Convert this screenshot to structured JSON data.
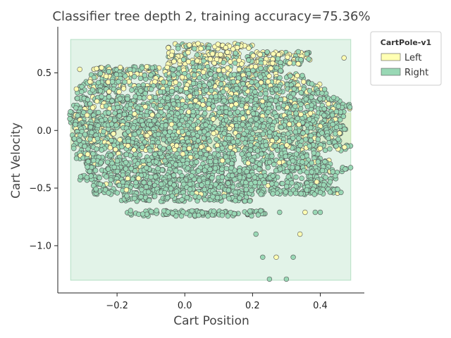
{
  "chart_data": {
    "type": "scatter",
    "title": "Classifier tree depth 2, training accuracy=75.36%",
    "xlabel": "Cart Position",
    "ylabel": "Cart Velocity",
    "xlim": [
      -0.375,
      0.53
    ],
    "ylim": [
      -1.41,
      0.9
    ],
    "xticks": [
      -0.2,
      0.0,
      0.2,
      0.4
    ],
    "xtick_labels": [
      "−0.2",
      "0.0",
      "0.2",
      "0.4"
    ],
    "yticks": [
      -1.0,
      -0.5,
      0.0,
      0.5
    ],
    "ytick_labels": [
      "−1.0",
      "−0.5",
      "0.0",
      "0.5"
    ],
    "grid": false,
    "legend": {
      "title": "CartPole-v1",
      "placement": "outside-top-right",
      "entries": [
        {
          "label": "Left",
          "color": "#ffffb3"
        },
        {
          "label": "Right",
          "color": "#99d8b5"
        }
      ]
    },
    "colors": {
      "Left": "#ffffb3",
      "Right": "#99d8b5",
      "region_right": "#7cc897",
      "region_left": "#d4ecb0",
      "marker_edge": "#555555"
    },
    "decision_regions": [
      {
        "class": "Right",
        "x": [
          -0.337,
          0.49
        ],
        "y": [
          -1.3,
          0.79
        ]
      },
      {
        "class": "Left",
        "x": [
          -0.337,
          0.49
        ],
        "y": [
          -0.15,
          0.15
        ]
      }
    ],
    "point_bands": {
      "description": "Dense horizontal bands of observations at discrete velocity levels",
      "levels_y": [
        0.73,
        0.66,
        0.6,
        0.53,
        0.47,
        0.4,
        0.34,
        0.27,
        0.21,
        0.14,
        0.08,
        0.03,
        -0.03,
        -0.09,
        -0.15,
        -0.22,
        -0.28,
        -0.34,
        -0.41,
        -0.47,
        -0.53,
        -0.59,
        -0.72
      ]
    },
    "sparse_points": [
      {
        "x": 0.21,
        "y": -0.9,
        "class": "Right"
      },
      {
        "x": 0.34,
        "y": -0.9,
        "class": "Left"
      },
      {
        "x": 0.23,
        "y": -1.1,
        "class": "Right"
      },
      {
        "x": 0.27,
        "y": -1.1,
        "class": "Left"
      },
      {
        "x": 0.32,
        "y": -1.1,
        "class": "Right"
      },
      {
        "x": 0.25,
        "y": -1.29,
        "class": "Right"
      },
      {
        "x": 0.3,
        "y": -1.29,
        "class": "Right"
      },
      {
        "x": 0.355,
        "y": -0.71,
        "class": "Left"
      },
      {
        "x": 0.385,
        "y": -0.71,
        "class": "Right"
      },
      {
        "x": 0.4,
        "y": -0.71,
        "class": "Right"
      },
      {
        "x": 0.28,
        "y": -0.71,
        "class": "Right"
      },
      {
        "x": 0.47,
        "y": 0.63,
        "class": "Left"
      },
      {
        "x": -0.31,
        "y": 0.53,
        "class": "Left"
      },
      {
        "x": -0.32,
        "y": 0.36,
        "class": "Left"
      }
    ]
  }
}
